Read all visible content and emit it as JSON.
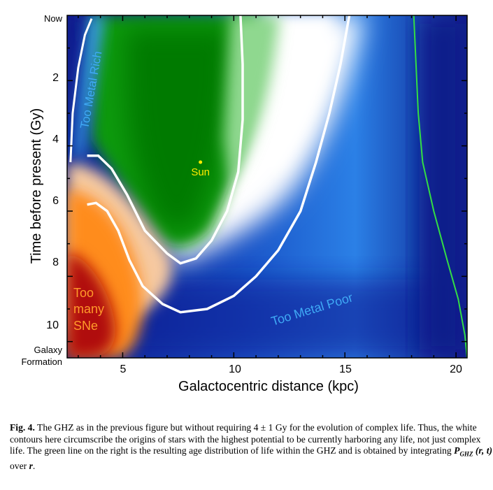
{
  "chart_data": {
    "type": "heatmap",
    "xlabel": "Galactocentric distance (kpc)",
    "ylabel": "Time before present (Gy)",
    "xlim": [
      2.5,
      20.5
    ],
    "ylim": [
      0,
      10.5
    ],
    "x_ticks": [
      "5",
      "10",
      "15",
      "20"
    ],
    "y_ticks": [
      "2",
      "4",
      "6",
      "8",
      "10"
    ],
    "y_top_label": "Now",
    "y_bottom_label_line1": "Galaxy",
    "y_bottom_label_line2": "Formation",
    "annotations": {
      "too_metal_rich": "Too Metal Rich",
      "too_metal_poor": "Too Metal Poor",
      "too_many_line1": "Too",
      "too_many_line2": "many",
      "too_many_line3": "SNe",
      "sun": "Sun"
    },
    "sun_point": {
      "x": 8.5,
      "y": 4.5
    },
    "contours": {
      "outer": [
        [
          3.4,
          5.8
        ],
        [
          3.8,
          5.75
        ],
        [
          4.3,
          6.0
        ],
        [
          4.8,
          6.6
        ],
        [
          5.3,
          7.5
        ],
        [
          5.9,
          8.3
        ],
        [
          6.8,
          8.85
        ],
        [
          7.6,
          9.1
        ],
        [
          8.8,
          9.0
        ],
        [
          10.0,
          8.6
        ],
        [
          11.0,
          8.0
        ],
        [
          12.0,
          7.2
        ],
        [
          13.0,
          6.0
        ],
        [
          13.7,
          4.5
        ],
        [
          14.3,
          3.0
        ],
        [
          14.8,
          1.5
        ],
        [
          15.2,
          0
        ]
      ],
      "inner": [
        [
          3.4,
          4.3
        ],
        [
          3.9,
          4.3
        ],
        [
          4.5,
          4.7
        ],
        [
          5.2,
          5.5
        ],
        [
          6.0,
          6.6
        ],
        [
          7.0,
          7.3
        ],
        [
          7.6,
          7.6
        ],
        [
          8.3,
          7.45
        ],
        [
          9.0,
          6.9
        ],
        [
          9.7,
          6.0
        ],
        [
          10.2,
          4.8
        ],
        [
          10.4,
          3.2
        ],
        [
          10.4,
          1.5
        ],
        [
          10.3,
          0
        ]
      ],
      "left": [
        [
          2.65,
          4.5
        ],
        [
          2.75,
          3.0
        ],
        [
          3.0,
          1.6
        ],
        [
          3.3,
          0.6
        ],
        [
          3.6,
          0.1
        ]
      ]
    },
    "age_distribution_line": [
      [
        18.1,
        0
      ],
      [
        18.2,
        1.5
      ],
      [
        18.3,
        3.0
      ],
      [
        18.5,
        4.5
      ],
      [
        19.0,
        6.0
      ],
      [
        19.6,
        7.5
      ],
      [
        20.1,
        8.7
      ],
      [
        20.4,
        9.8
      ],
      [
        20.5,
        10.5
      ]
    ],
    "colors": {
      "green_core": "#00a000",
      "green_light": "#7fd07f",
      "blue_dark": "#0a1c8f",
      "blue_mid": "#2a7ee6",
      "orange": "#ff8c1a",
      "red": "#a80000",
      "label_cyan": "#3fa9f5",
      "label_orange": "#ff9a2a",
      "sun_yellow": "#ffea00",
      "age_line": "#33dd44",
      "contour": "#ffffff"
    }
  },
  "caption": {
    "label": "Fig. 4.",
    "text_1": " The GHZ as in the previous figure but without requiring 4 ± 1 Gy for the evolution of complex life. Thus, the white contours here circumscribe the origins of stars with the highest potential to be currently harboring any life, not just complex life. The green line on the right is the resulting age distribution of life within the GHZ and is obtained by integrating ",
    "math_p": "P",
    "math_sub": "GHZ",
    "math_args": " (r, t)",
    "text_2": " over ",
    "math_r": "r",
    "text_3": "."
  }
}
